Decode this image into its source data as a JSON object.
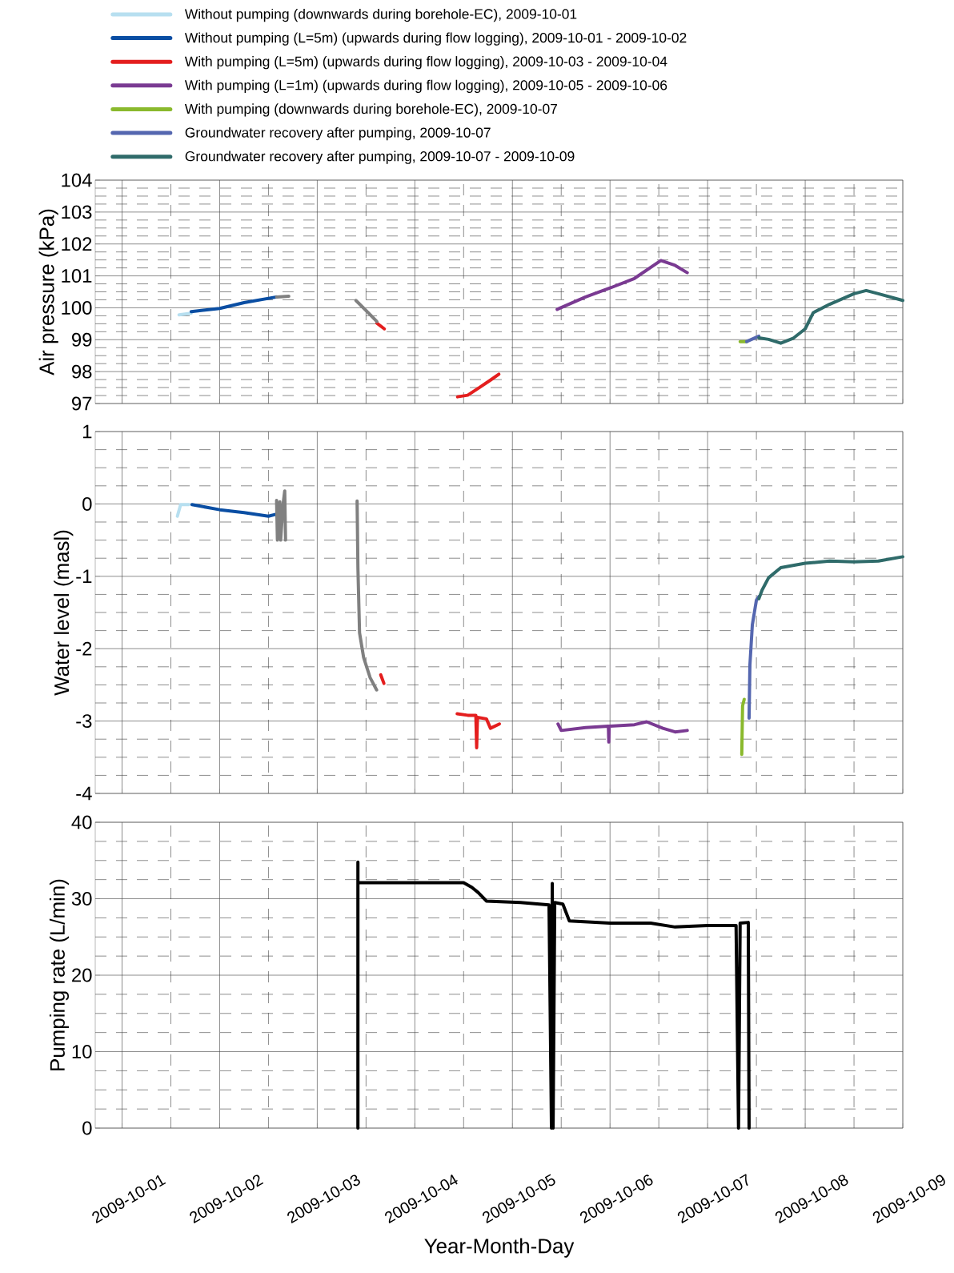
{
  "chart_data": [
    {
      "type": "line",
      "ylabel": "Air pressure (kPa)",
      "xlim": [
        "2009-09-30T17:24",
        "2009-10-09"
      ],
      "ylim": [
        97,
        104
      ],
      "yticks": [
        97,
        98,
        99,
        100,
        101,
        102,
        103,
        104
      ],
      "xticks": [
        "2009-10-01",
        "2009-10-02",
        "2009-10-03",
        "2009-10-04",
        "2009-10-05",
        "2009-10-06",
        "2009-10-07",
        "2009-10-08",
        "2009-10-09"
      ],
      "grid": true,
      "legend": "top",
      "tick_labels": "y",
      "marker": "none",
      "line_style": "solid",
      "series": [
        {
          "name": "Without pumping (downwards during borehole-EC), 2009-10-01",
          "color": "#b7dff0",
          "x": [
            "2009-10-01T14:00",
            "2009-10-01T17:00"
          ],
          "values": [
            99.78,
            99.83
          ]
        },
        {
          "name": "Without pumping (L=5m) (upwards during flow logging), 2009-10-01 - 2009-10-02",
          "color": "#0a4ea3",
          "x": [
            "2009-10-01T17:00",
            "2009-10-02T00:00",
            "2009-10-02T06:00",
            "2009-10-02T14:00"
          ],
          "values": [
            99.88,
            99.98,
            100.16,
            100.34
          ]
        },
        {
          "name": "With pumping (L=5m) (upwards during flow logging), 2009-10-03 - 2009-10-04",
          "color": "#e41e1e",
          "x": [
            "2009-10-03T14:40",
            "2009-10-03T16:30"
          ],
          "values": [
            99.52,
            99.34
          ]
        },
        {
          "name": "With pumping (L=1m) (upwards during flow logging), 2009-10-05 - 2009-10-06",
          "color": "#7a3a92",
          "x": [
            "2009-10-05T11:00",
            "2009-10-05T18:00",
            "2009-10-06T00:00",
            "2009-10-06T06:00",
            "2009-10-06T12:30",
            "2009-10-06T16:00",
            "2009-10-06T19:00"
          ],
          "values": [
            99.95,
            100.34,
            100.62,
            100.92,
            101.48,
            101.33,
            101.1
          ]
        },
        {
          "name": "With pumping (downwards during borehole-EC), 2009-10-07",
          "color": "#8ab92d",
          "x": [
            "2009-10-07T08:00",
            "2009-10-07T09:36"
          ],
          "values": [
            98.94,
            98.94
          ]
        },
        {
          "name": "Groundwater recovery after pumping, 2009-10-07",
          "color": "#5567b0",
          "x": [
            "2009-10-07T09:36",
            "2009-10-07T12:36"
          ],
          "values": [
            98.94,
            99.11
          ]
        },
        {
          "name": "Groundwater recovery after pumping, 2009-10-07 - 2009-10-09",
          "color": "#2f6b6a",
          "x": [
            "2009-10-07T12:36",
            "2009-10-07T15:00",
            "2009-10-07T18:00",
            "2009-10-07T21:00",
            "2009-10-08T00:00",
            "2009-10-08T02:00",
            "2009-10-08T06:00",
            "2009-10-08T12:00",
            "2009-10-08T15:00",
            "2009-10-08T18:00",
            "2009-10-09T00:00"
          ],
          "values": [
            99.06,
            99.01,
            98.89,
            99.04,
            99.34,
            99.85,
            100.11,
            100.44,
            100.54,
            100.44,
            100.23
          ]
        },
        {
          "color": "#808080",
          "x": [
            "2009-10-02T14:00",
            "2009-10-02T17:00"
          ],
          "values": [
            100.34,
            100.36
          ]
        },
        {
          "color": "#808080",
          "x": [
            "2009-10-03T09:30",
            "2009-10-03T12:30",
            "2009-10-03T14:40"
          ],
          "values": [
            100.23,
            99.85,
            99.57
          ]
        },
        {
          "color": "#e41e1e",
          "x": [
            "2009-10-04T10:30",
            "2009-10-04T13:00",
            "2009-10-04T16:00",
            "2009-10-04T18:40",
            "2009-10-04T20:40"
          ],
          "values": [
            97.21,
            97.26,
            97.51,
            97.74,
            97.92
          ]
        }
      ]
    },
    {
      "type": "line",
      "ylabel": "Water level (masl)",
      "xlim": [
        "2009-09-30T17:24",
        "2009-10-09"
      ],
      "ylim": [
        -4,
        1
      ],
      "yticks": [
        -4,
        -3,
        -2,
        -1,
        0,
        1
      ],
      "xticks": [
        "2009-10-01",
        "2009-10-02",
        "2009-10-03",
        "2009-10-04",
        "2009-10-05",
        "2009-10-06",
        "2009-10-07",
        "2009-10-08",
        "2009-10-09"
      ],
      "grid": true,
      "tick_labels": "y",
      "marker": "none",
      "line_style": "solid",
      "series": [
        {
          "color": "#b7dff0",
          "x": [
            "2009-10-01T13:36",
            "2009-10-01T14:24",
            "2009-10-01T16:24"
          ],
          "values": [
            -0.17,
            -0.01,
            -0.01
          ]
        },
        {
          "color": "#0a4ea3",
          "x": [
            "2009-10-01T17:12",
            "2009-10-02T00:00",
            "2009-10-02T06:00",
            "2009-10-02T12:00",
            "2009-10-02T14:00"
          ],
          "values": [
            -0.01,
            -0.08,
            -0.12,
            -0.17,
            -0.14
          ]
        },
        {
          "color": "#808080",
          "x": [
            "2009-10-02T14:00",
            "2009-10-02T14:12",
            "2009-10-02T14:48",
            "2009-10-02T15:00",
            "2009-10-02T15:36",
            "2009-10-02T16:00",
            "2009-10-02T16:12"
          ],
          "values": [
            0.05,
            -0.5,
            0.03,
            -0.5,
            0.0,
            0.18,
            -0.5
          ]
        },
        {
          "color": "#808080",
          "x": [
            "2009-10-03T09:48",
            "2009-10-03T10:00",
            "2009-10-03T10:24",
            "2009-10-03T11:24",
            "2009-10-03T13:00",
            "2009-10-03T14:36"
          ],
          "values": [
            0.04,
            -0.88,
            -1.78,
            -2.12,
            -2.4,
            -2.57
          ]
        },
        {
          "color": "#e41e1e",
          "x": [
            "2009-10-03T15:36",
            "2009-10-03T16:24"
          ],
          "values": [
            -2.36,
            -2.48
          ]
        },
        {
          "color": "#e41e1e",
          "x": [
            "2009-10-04T10:24",
            "2009-10-04T13:00",
            "2009-10-04T15:00",
            "2009-10-04T15:12",
            "2009-10-04T15:24",
            "2009-10-04T17:36",
            "2009-10-04T18:36",
            "2009-10-04T20:48"
          ],
          "values": [
            -2.9,
            -2.92,
            -2.92,
            -3.37,
            -2.95,
            -2.97,
            -3.1,
            -3.04
          ]
        },
        {
          "color": "#7a3a92",
          "x": [
            "2009-10-05T11:12",
            "2009-10-05T12:00",
            "2009-10-05T18:00",
            "2009-10-05T23:36",
            "2009-10-05T23:42",
            "2009-10-05T23:48",
            "2009-10-06T06:00",
            "2009-10-06T09:00",
            "2009-10-06T13:00",
            "2009-10-06T16:00",
            "2009-10-06T19:00"
          ],
          "values": [
            -3.04,
            -3.13,
            -3.09,
            -3.07,
            -3.29,
            -3.07,
            -3.05,
            -3.01,
            -3.1,
            -3.15,
            -3.13
          ]
        },
        {
          "color": "#8ab92d",
          "x": [
            "2009-10-07T08:24",
            "2009-10-07T08:36",
            "2009-10-07T09:00"
          ],
          "values": [
            -3.46,
            -2.79,
            -2.7
          ]
        },
        {
          "color": "#5567b0",
          "x": [
            "2009-10-07T10:12",
            "2009-10-07T10:24",
            "2009-10-07T11:00",
            "2009-10-07T12:00",
            "2009-10-07T12:36"
          ],
          "values": [
            -2.96,
            -2.23,
            -1.67,
            -1.33,
            -1.28
          ]
        },
        {
          "color": "#2f6b6a",
          "x": [
            "2009-10-07T12:36",
            "2009-10-07T13:24",
            "2009-10-07T15:00",
            "2009-10-07T18:00",
            "2009-10-08T00:00",
            "2009-10-08T06:00",
            "2009-10-08T12:00",
            "2009-10-08T18:00",
            "2009-10-09T00:00"
          ],
          "values": [
            -1.31,
            -1.19,
            -1.02,
            -0.88,
            -0.82,
            -0.79,
            -0.8,
            -0.79,
            -0.73
          ]
        }
      ]
    },
    {
      "type": "line",
      "ylabel": "Pumping rate (L/min)",
      "xlabel": "Year-Month-Day",
      "xlim": [
        "2009-09-30T17:24",
        "2009-10-09"
      ],
      "ylim": [
        0,
        40
      ],
      "yticks": [
        0,
        10,
        20,
        30,
        40
      ],
      "xticks": [
        "2009-10-01",
        "2009-10-02",
        "2009-10-03",
        "2009-10-04",
        "2009-10-05",
        "2009-10-06",
        "2009-10-07",
        "2009-10-08",
        "2009-10-09"
      ],
      "grid": true,
      "marker": "none",
      "line_style": "solid",
      "series": [
        {
          "color": "#000000",
          "x": [
            "2009-10-03T10:00",
            "2009-10-03T10:00",
            "2009-10-03T10:00",
            "2009-10-04T12:00",
            "2009-10-04T14:00",
            "2009-10-04T15:36",
            "2009-10-04T17:36",
            "2009-10-05T02:00",
            "2009-10-05T09:00",
            "2009-10-05T09:36",
            "2009-10-05T09:48",
            "2009-10-05T10:00",
            "2009-10-05T10:24",
            "2009-10-05T12:24",
            "2009-10-05T14:00",
            "2009-10-06T00:00",
            "2009-10-06T10:00",
            "2009-10-06T16:00",
            "2009-10-07T00:00",
            "2009-10-07T07:00",
            "2009-10-07T07:36",
            "2009-10-07T08:00",
            "2009-10-07T10:00",
            "2009-10-07T10:12"
          ],
          "values": [
            0,
            34.8,
            32.1,
            32.1,
            31.5,
            30.8,
            29.7,
            29.5,
            29.2,
            0,
            32.0,
            0,
            29.5,
            29.3,
            27.1,
            26.8,
            26.8,
            26.3,
            26.5,
            26.5,
            0,
            26.8,
            26.9,
            0
          ]
        }
      ]
    }
  ]
}
